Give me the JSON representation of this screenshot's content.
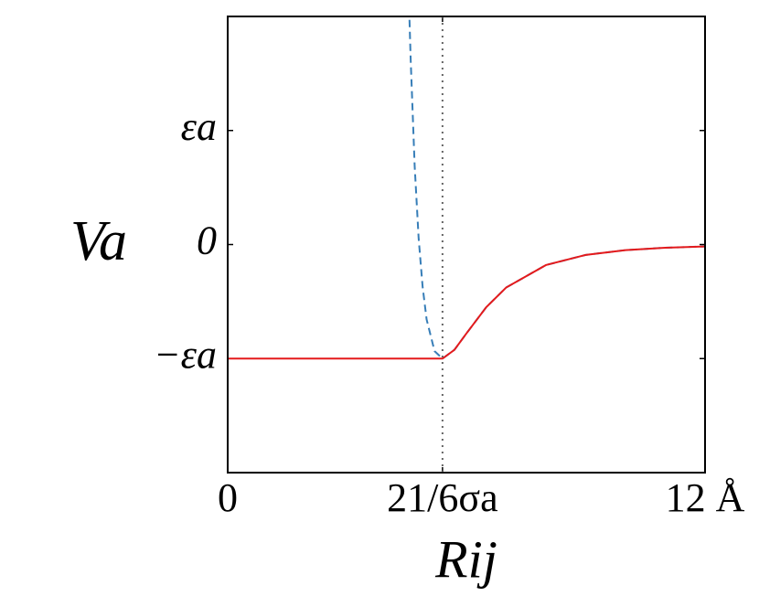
{
  "chart_data": {
    "type": "line",
    "xlabel": "Rij",
    "ylabel": "Va",
    "xlim": [
      0,
      12
    ],
    "ylim": [
      -2,
      2
    ],
    "xticks": [
      0,
      {
        "value": 5.4,
        "label": "21/6σa"
      },
      {
        "value": 12,
        "label": "12 Å"
      }
    ],
    "yticks": [
      {
        "value": -1,
        "label": "−εa"
      },
      0,
      {
        "value": 1,
        "label": "εa"
      }
    ],
    "series": [
      {
        "color": "#377eb8",
        "dash": true,
        "x": [
          4.57,
          4.6,
          4.7,
          4.8,
          4.9,
          5.0,
          5.2,
          5.4,
          5.7,
          6.0,
          6.5,
          7,
          8,
          9,
          10,
          11,
          12
        ],
        "values": [
          1.97,
          1.62,
          0.69,
          0.055,
          -0.37,
          -0.656,
          -0.935,
          -1,
          -0.923,
          -0.78,
          -0.549,
          -0.377,
          -0.18,
          -0.091,
          -0.049,
          -0.028,
          -0.0166
        ]
      },
      {
        "color": "#e41a1c",
        "dash": false,
        "x": [
          0,
          5.4,
          5.7,
          6.0,
          6.5,
          7,
          8,
          9,
          10,
          11,
          12
        ],
        "values": [
          -1,
          -1,
          -0.923,
          -0.78,
          -0.549,
          -0.377,
          -0.18,
          -0.091,
          -0.049,
          -0.028,
          -0.0166
        ]
      }
    ]
  }
}
